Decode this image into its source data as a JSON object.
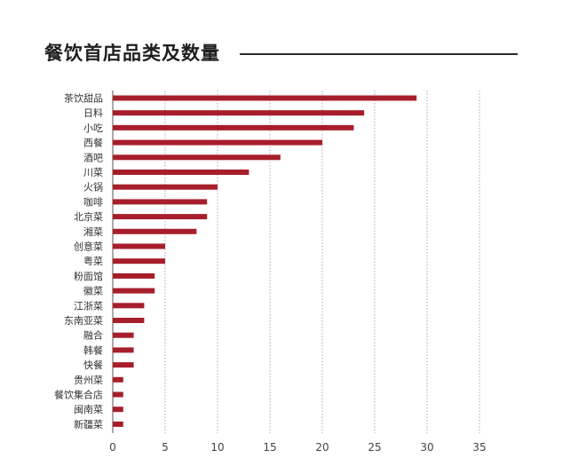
{
  "chart_data": {
    "type": "bar",
    "orientation": "horizontal",
    "title": "餐饮首店品类及数量",
    "categories": [
      "茶饮甜品",
      "日料",
      "小吃",
      "西餐",
      "酒吧",
      "川菜",
      "火锅",
      "咖啡",
      "北京菜",
      "湘菜",
      "创意菜",
      "粤菜",
      "粉面馆",
      "徽菜",
      "江浙菜",
      "东南亚菜",
      "融合",
      "韩餐",
      "快餐",
      "贵州菜",
      "餐饮集合店",
      "闽南菜",
      "新疆菜"
    ],
    "values": [
      29,
      24,
      23,
      20,
      16,
      13,
      10,
      9,
      9,
      8,
      5,
      5,
      4,
      4,
      3,
      3,
      2,
      2,
      2,
      1,
      1,
      1,
      1
    ],
    "xlim": [
      0,
      35
    ],
    "xticks": [
      "0",
      "5",
      "10",
      "15",
      "20",
      "25",
      "30",
      "35"
    ],
    "xlabel": "",
    "ylabel": "",
    "grid": "vertical-dotted",
    "bar_color": "#a71e2b",
    "grid_color": "#b99bc9"
  }
}
